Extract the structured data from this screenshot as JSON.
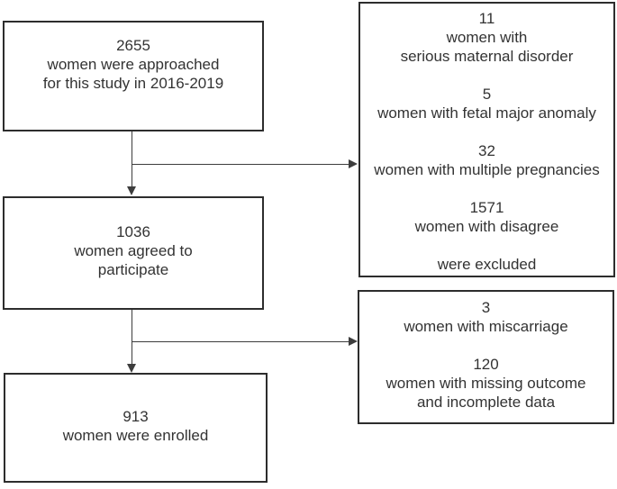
{
  "diagram": {
    "type": "flowchart",
    "colors": {
      "border": "#2d2d2d",
      "text": "#333333",
      "line": "#3d3d3d",
      "bg": "#ffffff"
    },
    "boxes": {
      "approached": {
        "lines": [
          "2655",
          "women were approached",
          "for this study in 2016-2019"
        ]
      },
      "agreed": {
        "lines": [
          "1036",
          "women agreed to",
          "participate"
        ]
      },
      "enrolled": {
        "lines": [
          "913",
          "women were enrolled"
        ]
      },
      "excluded": {
        "lines": [
          "11",
          "women with",
          "serious maternal disorder",
          "",
          "5",
          "women with fetal major anomaly",
          "",
          "32",
          "women with multiple pregnancies",
          "",
          "1571",
          "women with disagree",
          "",
          "were excluded"
        ]
      },
      "withdrawn": {
        "lines": [
          "3",
          "women with miscarriage",
          "",
          "120",
          "women with missing outcome",
          "and incomplete data"
        ]
      }
    },
    "edges": [
      {
        "from": "approached",
        "to": "agreed",
        "style": "arrow-down"
      },
      {
        "from": "approached",
        "to": "excluded",
        "style": "arrow-right"
      },
      {
        "from": "agreed",
        "to": "enrolled",
        "style": "arrow-down"
      },
      {
        "from": "agreed",
        "to": "withdrawn",
        "style": "arrow-right"
      }
    ]
  }
}
